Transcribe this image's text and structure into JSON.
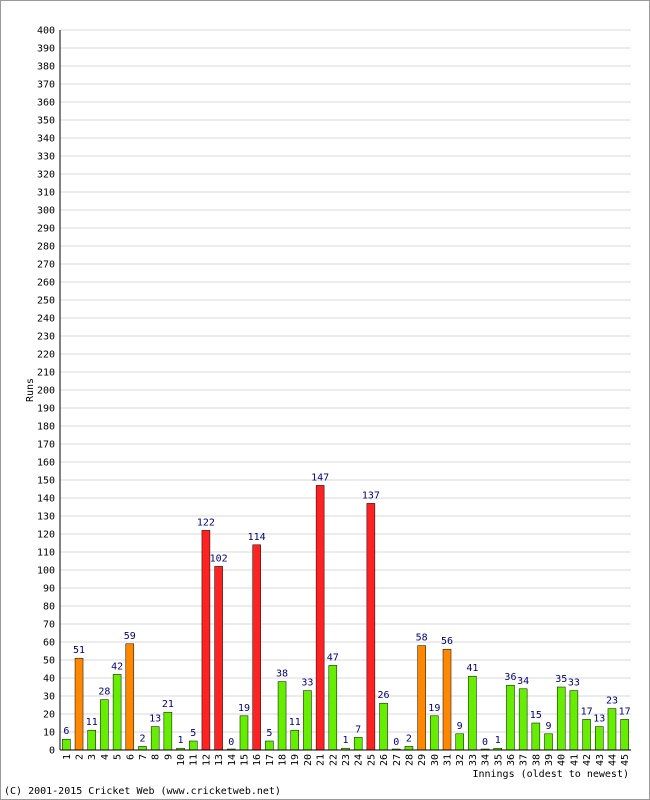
{
  "chart_data": {
    "type": "bar",
    "title": "",
    "xlabel": "Innings (oldest to newest)",
    "ylabel": "Runs",
    "ylim": [
      0,
      400
    ],
    "ytick_step": 10,
    "grid": true,
    "categories": [
      "1",
      "2",
      "3",
      "4",
      "5",
      "6",
      "7",
      "8",
      "9",
      "10",
      "11",
      "12",
      "13",
      "14",
      "15",
      "16",
      "17",
      "18",
      "19",
      "20",
      "21",
      "22",
      "23",
      "24",
      "25",
      "26",
      "27",
      "28",
      "29",
      "30",
      "31",
      "32",
      "33",
      "34",
      "35",
      "36",
      "37",
      "38",
      "39",
      "40",
      "41",
      "42",
      "43",
      "44",
      "45"
    ],
    "values": [
      6,
      51,
      11,
      28,
      42,
      59,
      2,
      13,
      21,
      1,
      5,
      122,
      102,
      0,
      19,
      114,
      5,
      38,
      11,
      33,
      147,
      47,
      1,
      7,
      137,
      26,
      0,
      2,
      58,
      19,
      56,
      9,
      41,
      0,
      1,
      36,
      34,
      15,
      9,
      35,
      33,
      17,
      13,
      23,
      17
    ],
    "bar_color_classes": [
      "green",
      "orange",
      "green",
      "green",
      "green",
      "orange",
      "green",
      "green",
      "green",
      "green",
      "green",
      "red",
      "red",
      "green",
      "green",
      "red",
      "green",
      "green",
      "green",
      "green",
      "red",
      "green",
      "green",
      "green",
      "red",
      "green",
      "green",
      "green",
      "orange",
      "green",
      "orange",
      "green",
      "green",
      "green",
      "green",
      "green",
      "green",
      "green",
      "green",
      "green",
      "green",
      "green",
      "green",
      "green",
      "green"
    ],
    "colors": {
      "green": "#66ee00",
      "orange": "#ff8800",
      "red": "#ff2222",
      "label": "#000080",
      "grid": "#d8d8d8"
    }
  },
  "footer": {
    "copyright": "(C) 2001-2015 Cricket Web (www.cricketweb.net)"
  }
}
